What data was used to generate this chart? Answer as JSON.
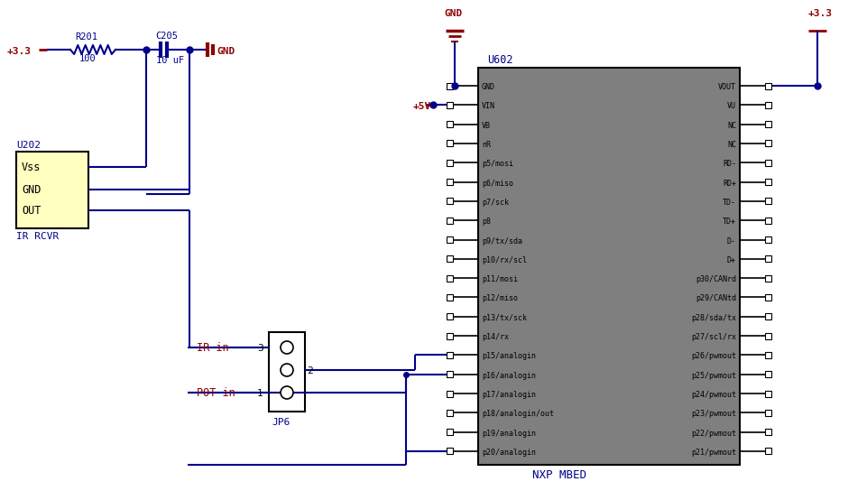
{
  "bg_color": "#ffffff",
  "wire_color": "#00008B",
  "label_color": "#8B0000",
  "comp_label_color": "#00008B",
  "ic_fill_color": "#7f7f7f",
  "ic_edge_color": "#000000",
  "u202_fill": "#FFFFC0",
  "power_color": "#8B0000",
  "left_pins": [
    "GND",
    "VIN",
    "VB",
    "nR",
    "p5/mosi",
    "p6/miso",
    "p7/sck",
    "p8",
    "p9/tx/sda",
    "p10/rx/scl",
    "p11/mosi",
    "p12/miso",
    "p13/tx/sck",
    "p14/rx",
    "p15/analogin",
    "p16/analogin",
    "p17/analogin",
    "p18/analogin/out",
    "p19/analogin",
    "p20/analogin"
  ],
  "right_pins": [
    "VOUT",
    "VU",
    "NC",
    "NC",
    "RD-",
    "RD+",
    "TD-",
    "TD+",
    "D-",
    "D+",
    "p30/CANrd",
    "p29/CANtd",
    "p28/sda/tx",
    "p27/scl/rx",
    "p26/pwmout",
    "p25/pwmout",
    "p24/pwmout",
    "p23/pwmout",
    "p22/pwmout",
    "p21/pwmout"
  ],
  "figw": 9.61,
  "figh": 5.54,
  "dpi": 100
}
